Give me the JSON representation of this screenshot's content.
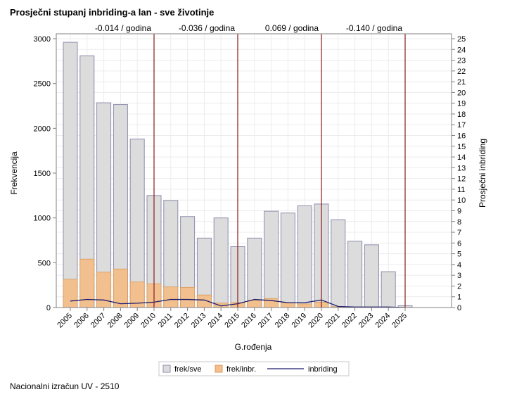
{
  "chart_data": {
    "type": "bar",
    "title": "Prosječni stupanj inbriding-a lan - sve životinje",
    "xlabel": "G.rođenja",
    "ylabel": "Frekvencija",
    "y2label": "Prosječni inbriding",
    "footnote": "Nacionalni izračun UV - 2510",
    "categories": [
      "2005",
      "2006",
      "2007",
      "2008",
      "2009",
      "2010",
      "2011",
      "2012",
      "2013",
      "2014",
      "2015",
      "2016",
      "2017",
      "2018",
      "2019",
      "2020",
      "2021",
      "2022",
      "2023",
      "2024",
      "2025"
    ],
    "ylim": [
      0,
      3000
    ],
    "yticks": [
      0,
      500,
      1000,
      1500,
      2000,
      2500,
      3000
    ],
    "y2lim": [
      0,
      25
    ],
    "y2ticks": [
      0,
      1,
      2,
      3,
      4,
      5,
      6,
      7,
      8,
      9,
      10,
      11,
      12,
      13,
      14,
      15,
      16,
      17,
      18,
      19,
      20,
      21,
      22,
      23,
      24,
      25
    ],
    "grid": true,
    "legend_position": "bottom",
    "series": [
      {
        "name": "frek/sve",
        "type": "bar",
        "axis": "left",
        "color": "#dcdcdc",
        "stroke": "#8e8eae",
        "values": [
          2960,
          2810,
          2285,
          2265,
          1880,
          1250,
          1195,
          1015,
          775,
          1000,
          680,
          775,
          1075,
          1055,
          1135,
          1155,
          980,
          740,
          700,
          400,
          20
        ]
      },
      {
        "name": "frek/inbr.",
        "type": "bar",
        "axis": "left",
        "color": "#f2c08e",
        "stroke": "#d99a5a",
        "values": [
          315,
          540,
          395,
          430,
          285,
          265,
          230,
          225,
          140,
          50,
          55,
          80,
          100,
          55,
          40,
          60,
          10,
          5,
          5,
          5,
          2
        ]
      },
      {
        "name": "inbriding",
        "type": "line",
        "axis": "right",
        "color": "#1c1c6e",
        "values": [
          0.6,
          0.75,
          0.7,
          0.35,
          0.4,
          0.5,
          0.75,
          0.75,
          0.7,
          0.15,
          0.35,
          0.75,
          0.65,
          0.45,
          0.45,
          0.7,
          0.1,
          0.05,
          0.05,
          0.05,
          0.0
        ]
      }
    ],
    "reference_lines": {
      "color": "#8b1a1a",
      "at": [
        "2010",
        "2015",
        "2020",
        "2025"
      ],
      "labels": [
        {
          "between": [
            "2005",
            "2010"
          ],
          "text": "-0.014 / godina"
        },
        {
          "between": [
            "2010",
            "2015"
          ],
          "text": "-0.036 / godina"
        },
        {
          "between": [
            "2015",
            "2020"
          ],
          "text": "0.069 / godina"
        },
        {
          "between": [
            "2020",
            "2025"
          ],
          "text": "-0.140 / godina"
        }
      ]
    }
  }
}
